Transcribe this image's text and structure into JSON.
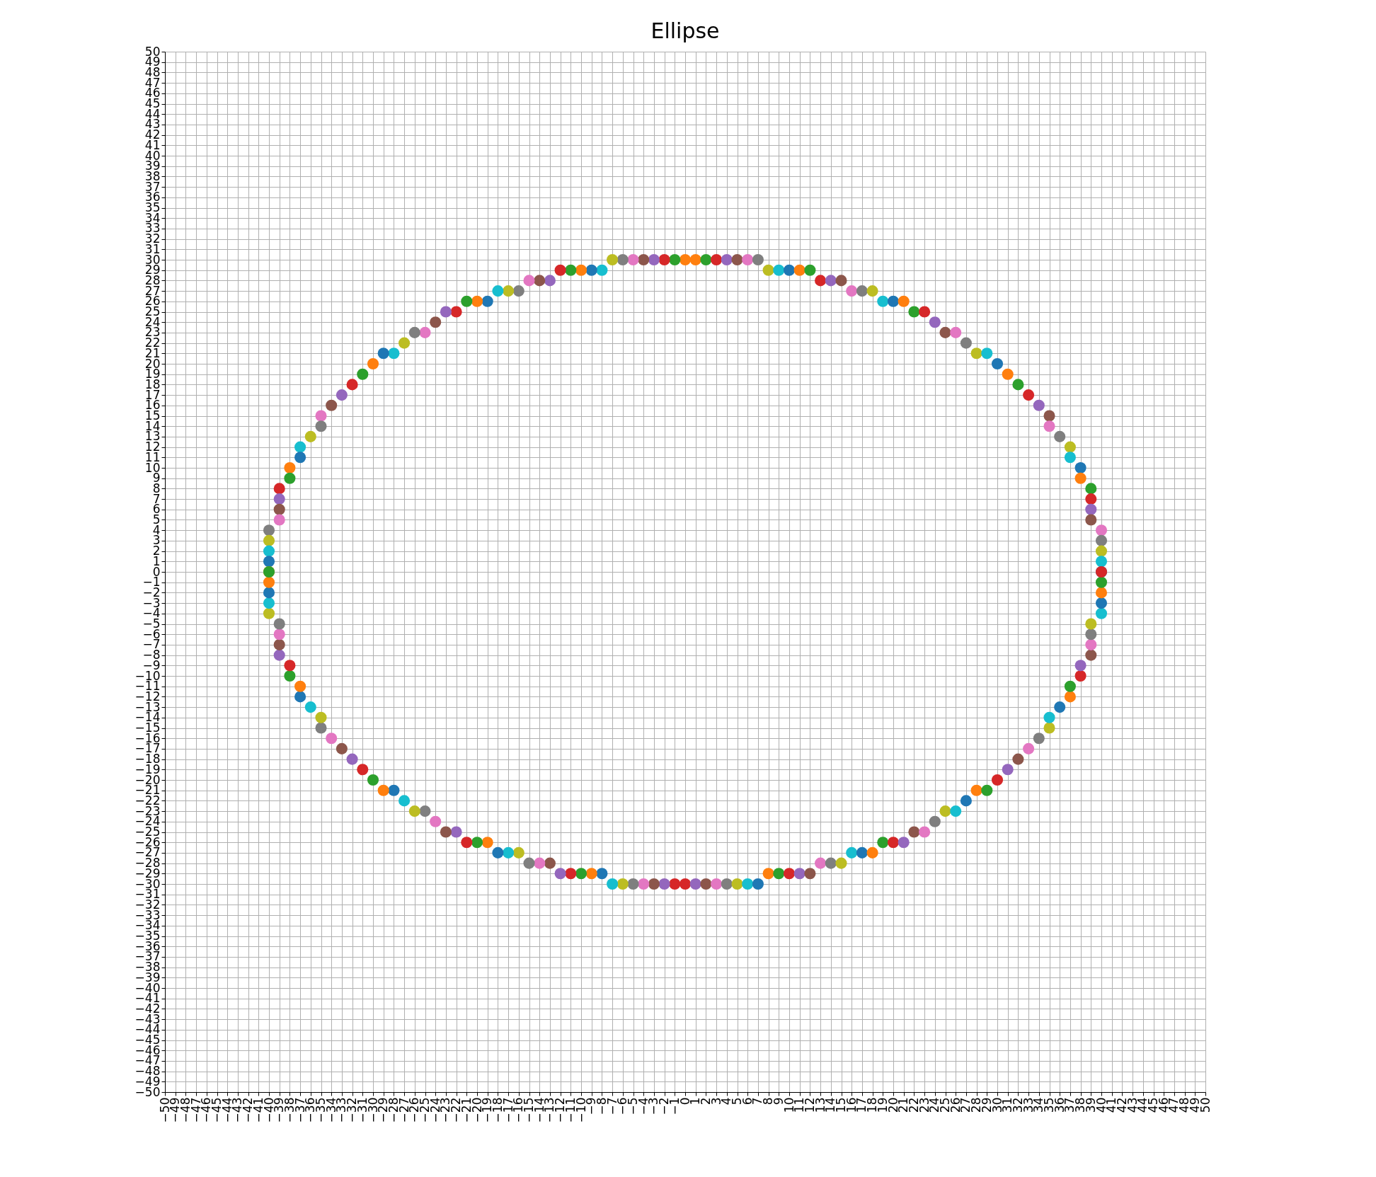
{
  "chart_data": {
    "type": "scatter",
    "title": "Ellipse",
    "marker": "circle",
    "grid": true,
    "xlim": [
      -50,
      50
    ],
    "ylim": [
      -50,
      50
    ],
    "xticks": [
      -50,
      -49,
      -48,
      -47,
      -46,
      -45,
      -44,
      -43,
      -42,
      -41,
      -40,
      -39,
      -38,
      -37,
      -36,
      -35,
      -34,
      -33,
      -32,
      -31,
      -30,
      -29,
      -28,
      -27,
      -26,
      -25,
      -24,
      -23,
      -22,
      -21,
      -20,
      -19,
      -18,
      -17,
      -16,
      -15,
      -14,
      -13,
      -12,
      -11,
      -10,
      -9,
      -8,
      -7,
      -6,
      -5,
      -4,
      -3,
      -2,
      -1,
      0,
      1,
      2,
      3,
      4,
      5,
      6,
      7,
      8,
      9,
      10,
      11,
      12,
      13,
      14,
      15,
      16,
      17,
      18,
      19,
      20,
      21,
      22,
      23,
      24,
      25,
      26,
      27,
      28,
      29,
      30,
      31,
      32,
      33,
      34,
      35,
      36,
      37,
      38,
      39,
      40,
      41,
      42,
      43,
      44,
      45,
      46,
      47,
      48,
      49,
      50
    ],
    "yticks": [
      -50,
      -49,
      -48,
      -47,
      -46,
      -45,
      -44,
      -43,
      -42,
      -41,
      -40,
      -39,
      -38,
      -37,
      -36,
      -35,
      -34,
      -33,
      -32,
      -31,
      -30,
      -29,
      -28,
      -27,
      -26,
      -25,
      -24,
      -23,
      -22,
      -21,
      -20,
      -19,
      -18,
      -17,
      -16,
      -15,
      -14,
      -13,
      -12,
      -11,
      -10,
      -9,
      -8,
      -7,
      -6,
      -5,
      -4,
      -3,
      -2,
      -1,
      0,
      1,
      2,
      3,
      4,
      5,
      6,
      7,
      8,
      9,
      10,
      11,
      12,
      13,
      14,
      15,
      16,
      17,
      18,
      19,
      20,
      21,
      22,
      23,
      24,
      25,
      26,
      27,
      28,
      29,
      30,
      31,
      32,
      33,
      34,
      35,
      36,
      37,
      38,
      39,
      40,
      41,
      42,
      43,
      44,
      45,
      46,
      47,
      48,
      49,
      50
    ],
    "series": [
      {
        "x": [
          1,
          2,
          3,
          4,
          5,
          6,
          7,
          8,
          9,
          10,
          11,
          12,
          13,
          14,
          15,
          16,
          17,
          18,
          19,
          20,
          21,
          22,
          23,
          24,
          25,
          26,
          27,
          28,
          29,
          30,
          31,
          32,
          33,
          34,
          35,
          35,
          36,
          37,
          37,
          38,
          38,
          39,
          39,
          39,
          39,
          40,
          40,
          40,
          40,
          40
        ],
        "values": [
          30,
          30,
          30,
          30,
          30,
          30,
          30,
          29,
          29,
          29,
          29,
          29,
          28,
          28,
          28,
          27,
          27,
          27,
          26,
          26,
          26,
          25,
          25,
          24,
          23,
          23,
          22,
          21,
          21,
          20,
          19,
          18,
          17,
          16,
          15,
          14,
          13,
          12,
          11,
          10,
          9,
          8,
          7,
          6,
          5,
          4,
          3,
          2,
          1,
          0
        ],
        "colors": [
          "#ff7f0e",
          "#2ca02c",
          "#d62728",
          "#9467bd",
          "#8c564b",
          "#e377c2",
          "#7f7f7f",
          "#bcbd22",
          "#17becf",
          "#1f77b4",
          "#ff7f0e",
          "#2ca02c",
          "#d62728",
          "#9467bd",
          "#8c564b",
          "#e377c2",
          "#7f7f7f",
          "#bcbd22",
          "#17becf",
          "#1f77b4",
          "#ff7f0e",
          "#2ca02c",
          "#d62728",
          "#9467bd",
          "#8c564b",
          "#e377c2",
          "#7f7f7f",
          "#bcbd22",
          "#17becf",
          "#1f77b4",
          "#ff7f0e",
          "#2ca02c",
          "#d62728",
          "#9467bd",
          "#8c564b",
          "#e377c2",
          "#7f7f7f",
          "#bcbd22",
          "#17becf",
          "#1f77b4",
          "#ff7f0e",
          "#2ca02c",
          "#d62728",
          "#9467bd",
          "#8c564b",
          "#e377c2",
          "#7f7f7f",
          "#bcbd22",
          "#17becf",
          "#1f77b4"
        ]
      },
      {
        "x": [
          0,
          -1,
          -2,
          -3,
          -4,
          -5,
          -6,
          -7,
          -8,
          -9,
          -10,
          -11,
          -12,
          -13,
          -14,
          -15,
          -16,
          -17,
          -18,
          -19,
          -20,
          -21,
          -22,
          -23,
          -24,
          -25,
          -26,
          -27,
          -28,
          -29,
          -30,
          -31,
          -32,
          -33,
          -34,
          -35,
          -35,
          -36,
          -37,
          -37,
          -38,
          -38,
          -39,
          -39,
          -39,
          -39,
          -40,
          -40,
          -40,
          -40,
          -40
        ],
        "values": [
          30,
          30,
          30,
          30,
          30,
          30,
          30,
          30,
          29,
          29,
          29,
          29,
          29,
          28,
          28,
          28,
          27,
          27,
          27,
          26,
          26,
          26,
          25,
          25,
          24,
          23,
          23,
          22,
          21,
          21,
          20,
          19,
          18,
          17,
          16,
          15,
          14,
          13,
          12,
          11,
          10,
          9,
          8,
          7,
          6,
          5,
          4,
          3,
          2,
          1,
          0
        ],
        "colors": [
          "#ff7f0e",
          "#2ca02c",
          "#d62728",
          "#9467bd",
          "#8c564b",
          "#e377c2",
          "#7f7f7f",
          "#bcbd22",
          "#17becf",
          "#1f77b4",
          "#ff7f0e",
          "#2ca02c",
          "#d62728",
          "#9467bd",
          "#8c564b",
          "#e377c2",
          "#7f7f7f",
          "#bcbd22",
          "#17becf",
          "#1f77b4",
          "#ff7f0e",
          "#2ca02c",
          "#d62728",
          "#9467bd",
          "#8c564b",
          "#e377c2",
          "#7f7f7f",
          "#bcbd22",
          "#17becf",
          "#1f77b4",
          "#ff7f0e",
          "#2ca02c",
          "#d62728",
          "#9467bd",
          "#8c564b",
          "#e377c2",
          "#7f7f7f",
          "#bcbd22",
          "#17becf",
          "#1f77b4",
          "#ff7f0e",
          "#2ca02c",
          "#d62728",
          "#9467bd",
          "#8c564b",
          "#e377c2",
          "#7f7f7f",
          "#bcbd22",
          "#17becf",
          "#1f77b4",
          "#ff7f0e"
        ]
      },
      {
        "x": [
          -1,
          -2,
          -3,
          -4,
          -5,
          -6,
          -7,
          -8,
          -9,
          -10,
          -11,
          -12,
          -13,
          -14,
          -15,
          -16,
          -17,
          -18,
          -19,
          -20,
          -21,
          -22,
          -23,
          -24,
          -25,
          -26,
          -27,
          -28,
          -29,
          -30,
          -31,
          -32,
          -33,
          -34,
          -35,
          -35,
          -36,
          -37,
          -37,
          -38,
          -38,
          -39,
          -39,
          -39,
          -39,
          -40,
          -40,
          -40,
          -40,
          -40
        ],
        "values": [
          -30,
          -30,
          -30,
          -30,
          -30,
          -30,
          -30,
          -29,
          -29,
          -29,
          -29,
          -29,
          -28,
          -28,
          -28,
          -27,
          -27,
          -27,
          -26,
          -26,
          -26,
          -25,
          -25,
          -24,
          -23,
          -23,
          -22,
          -21,
          -21,
          -20,
          -19,
          -18,
          -17,
          -16,
          -15,
          -14,
          -13,
          -12,
          -11,
          -10,
          -9,
          -8,
          -7,
          -6,
          -5,
          -4,
          -3,
          -2,
          -1,
          0
        ],
        "colors": [
          "#d62728",
          "#9467bd",
          "#8c564b",
          "#e377c2",
          "#7f7f7f",
          "#bcbd22",
          "#17becf",
          "#1f77b4",
          "#ff7f0e",
          "#2ca02c",
          "#d62728",
          "#9467bd",
          "#8c564b",
          "#e377c2",
          "#7f7f7f",
          "#bcbd22",
          "#17becf",
          "#1f77b4",
          "#ff7f0e",
          "#2ca02c",
          "#d62728",
          "#9467bd",
          "#8c564b",
          "#e377c2",
          "#7f7f7f",
          "#bcbd22",
          "#17becf",
          "#1f77b4",
          "#ff7f0e",
          "#2ca02c",
          "#d62728",
          "#9467bd",
          "#8c564b",
          "#e377c2",
          "#7f7f7f",
          "#bcbd22",
          "#17becf",
          "#1f77b4",
          "#ff7f0e",
          "#2ca02c",
          "#d62728",
          "#9467bd",
          "#8c564b",
          "#e377c2",
          "#7f7f7f",
          "#bcbd22",
          "#17becf",
          "#1f77b4",
          "#ff7f0e",
          "#2ca02c"
        ]
      },
      {
        "x": [
          0,
          1,
          2,
          3,
          4,
          5,
          6,
          7,
          8,
          9,
          10,
          11,
          12,
          13,
          14,
          15,
          16,
          17,
          18,
          19,
          20,
          21,
          22,
          23,
          24,
          25,
          26,
          27,
          28,
          29,
          30,
          31,
          32,
          33,
          34,
          35,
          35,
          36,
          37,
          37,
          38,
          38,
          39,
          39,
          39,
          39,
          40,
          40,
          40,
          40,
          40
        ],
        "values": [
          -30,
          -30,
          -30,
          -30,
          -30,
          -30,
          -30,
          -30,
          -29,
          -29,
          -29,
          -29,
          -29,
          -28,
          -28,
          -28,
          -27,
          -27,
          -27,
          -26,
          -26,
          -26,
          -25,
          -25,
          -24,
          -23,
          -23,
          -22,
          -21,
          -21,
          -20,
          -19,
          -18,
          -17,
          -16,
          -15,
          -14,
          -13,
          -12,
          -11,
          -10,
          -9,
          -8,
          -7,
          -6,
          -5,
          -4,
          -3,
          -2,
          -1,
          0
        ],
        "colors": [
          "#d62728",
          "#9467bd",
          "#8c564b",
          "#e377c2",
          "#7f7f7f",
          "#bcbd22",
          "#17becf",
          "#1f77b4",
          "#ff7f0e",
          "#2ca02c",
          "#d62728",
          "#9467bd",
          "#8c564b",
          "#e377c2",
          "#7f7f7f",
          "#bcbd22",
          "#17becf",
          "#1f77b4",
          "#ff7f0e",
          "#2ca02c",
          "#d62728",
          "#9467bd",
          "#8c564b",
          "#e377c2",
          "#7f7f7f",
          "#bcbd22",
          "#17becf",
          "#1f77b4",
          "#ff7f0e",
          "#2ca02c",
          "#d62728",
          "#9467bd",
          "#8c564b",
          "#e377c2",
          "#7f7f7f",
          "#bcbd22",
          "#17becf",
          "#1f77b4",
          "#ff7f0e",
          "#2ca02c",
          "#d62728",
          "#9467bd",
          "#8c564b",
          "#e377c2",
          "#7f7f7f",
          "#bcbd22",
          "#17becf",
          "#1f77b4",
          "#ff7f0e",
          "#2ca02c",
          "#d62728"
        ]
      }
    ]
  }
}
